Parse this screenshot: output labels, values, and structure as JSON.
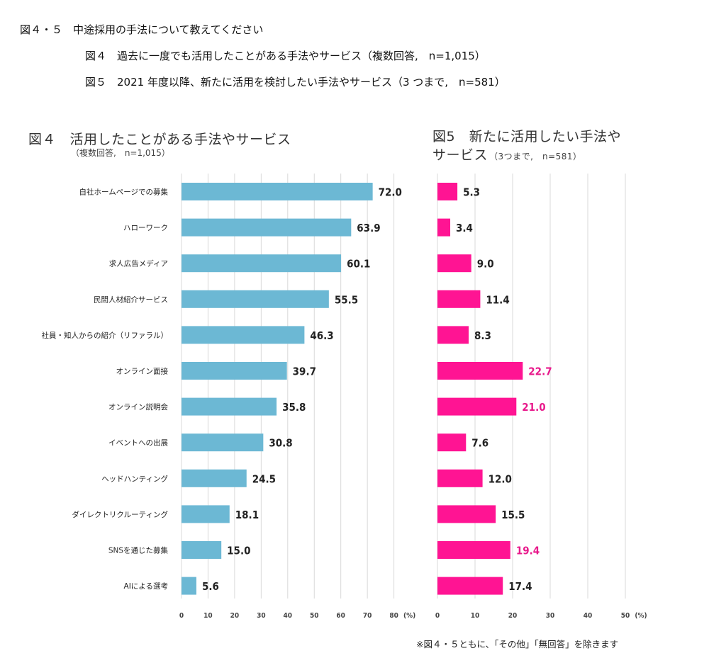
{
  "header": {
    "line1": "図４・５　中途採用の手法について教えてください",
    "line2": "図４　過去に一度でも活用したことがある手法やサービス（複数回答,　n=1,015）",
    "line3": "図５　2021 年度以降、新たに活用を検討したい手法やサービス（3 つまで,　n=581）"
  },
  "footnote": "※図４・５ともに、「その他」「無回答」を除きます",
  "colors": {
    "fig4_bar": "#6cb8d4",
    "fig5_bar": "#ff1493",
    "highlight_text": "#e8198b",
    "grid": "#d9d9d9"
  },
  "chart_data": [
    {
      "type": "bar",
      "orientation": "horizontal",
      "title": "図４　活用したことがある手法やサービス",
      "subtitle": "（複数回答,　n=1,015）",
      "unit": "(%)",
      "xlim": [
        0,
        80
      ],
      "xticks": [
        "0",
        "10",
        "20",
        "30",
        "40",
        "50",
        "60",
        "70",
        "80"
      ],
      "grid": true,
      "categories": [
        "自社ホームページでの募集",
        "ハローワーク",
        "求人広告メディア",
        "民間人材紹介サービス",
        "社員・知人からの紹介（リファラル）",
        "オンライン面接",
        "オンライン説明会",
        "イベントへの出展",
        "ヘッドハンティング",
        "ダイレクトリクルーティング",
        "SNSを通じた募集",
        "AIによる選考"
      ],
      "values": [
        72.0,
        63.9,
        60.1,
        55.5,
        46.3,
        39.7,
        35.8,
        30.8,
        24.5,
        18.1,
        15.0,
        5.6
      ],
      "labels": [
        "72.0",
        "63.9",
        "60.1",
        "55.5",
        "46.3",
        "39.7",
        "35.8",
        "30.8",
        "24.5",
        "18.1",
        "15.0",
        "5.6"
      ]
    },
    {
      "type": "bar",
      "orientation": "horizontal",
      "title_line1": "図5　新たに活用したい手法や",
      "title_line2": "サービス",
      "subtitle": "（3つまで,　n=581）",
      "unit": "(%)",
      "xlim": [
        0,
        50
      ],
      "xticks": [
        "0",
        "10",
        "20",
        "30",
        "40",
        "50"
      ],
      "grid": true,
      "values": [
        5.3,
        3.4,
        9.0,
        11.4,
        8.3,
        22.7,
        21.0,
        7.6,
        12.0,
        15.5,
        19.4,
        17.4
      ],
      "labels": [
        "5.3",
        "3.4",
        "9.0",
        "11.4",
        "8.3",
        "22.7",
        "21.0",
        "7.6",
        "12.0",
        "15.5",
        "19.4",
        "17.4"
      ],
      "highlighted": [
        false,
        false,
        false,
        false,
        false,
        true,
        true,
        false,
        false,
        false,
        true,
        false
      ]
    }
  ]
}
